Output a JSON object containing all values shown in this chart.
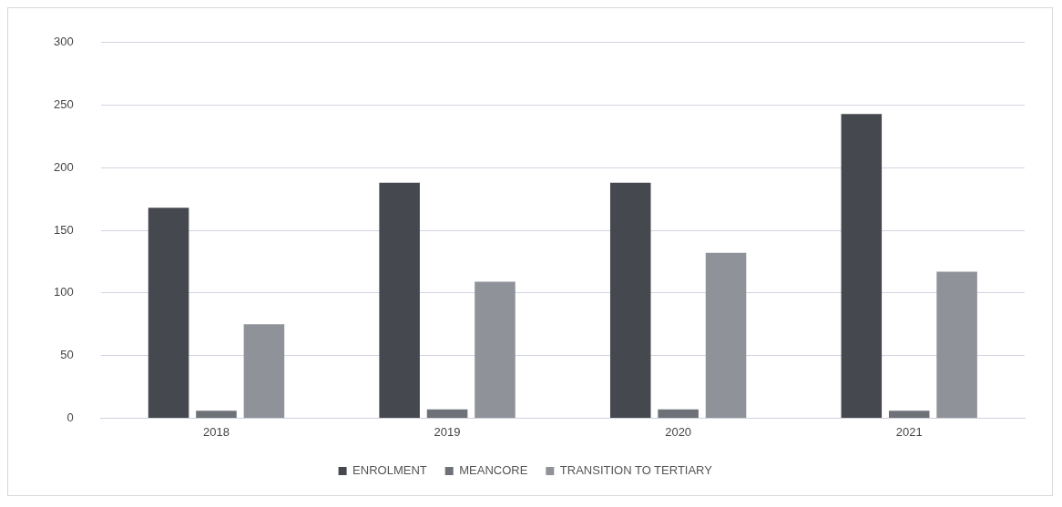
{
  "chart_data": {
    "type": "bar",
    "categories": [
      "2018",
      "2019",
      "2020",
      "2021"
    ],
    "series": [
      {
        "name": "ENROLMENT",
        "color": "#46484f",
        "values": [
          168,
          188,
          188,
          243
        ]
      },
      {
        "name": "MEANCORE",
        "color": "#6e7178",
        "values": [
          6,
          7,
          7,
          6
        ]
      },
      {
        "name": "TRANSITION TO TERTIARY",
        "color": "#8f9299",
        "values": [
          75,
          109,
          132,
          117
        ]
      }
    ],
    "ylim": [
      0,
      300
    ],
    "yticks": [
      0,
      50,
      100,
      150,
      200,
      250,
      300
    ],
    "grid": "y",
    "legend": "bottom"
  }
}
